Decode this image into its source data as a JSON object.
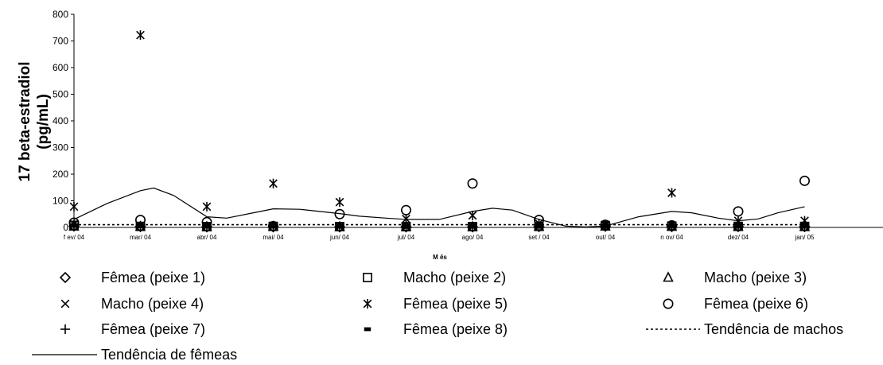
{
  "chart_data": {
    "type": "scatter",
    "title": "",
    "ylabel_line1": "17 beta-estradiol",
    "ylabel_line2": "(pg/mL)",
    "xlabel": "M ês",
    "ylim": [
      0,
      800
    ],
    "yticks": [
      "0",
      "100",
      "200",
      "300",
      "400",
      "500",
      "600",
      "700",
      "800"
    ],
    "categories": [
      "f ev/ 04",
      "mar/ 04",
      "abr/ 04",
      "mai/ 04",
      "jun/ 04",
      "jul/ 04",
      "ago/ 04",
      "set / 04",
      "out/ 04",
      "n ov/ 04",
      "dez/ 04",
      "jan/ 05"
    ],
    "grid": false,
    "legend_position": "bottom",
    "series": [
      {
        "name": "Fêmea (peixe 1)",
        "marker": "diamond",
        "values": [
          5,
          3,
          2,
          2,
          2,
          2,
          2,
          3,
          4,
          3,
          3,
          3
        ]
      },
      {
        "name": "Macho (peixe 2)",
        "marker": "square",
        "values": [
          8,
          4,
          3,
          4,
          3,
          3,
          3,
          4,
          6,
          5,
          4,
          4
        ]
      },
      {
        "name": "Macho (peixe 3)",
        "marker": "triangle",
        "values": [
          4,
          3,
          2,
          3,
          2,
          2,
          2,
          3,
          4,
          3,
          3,
          2
        ]
      },
      {
        "name": "Macho (peixe 4)",
        "marker": "x",
        "values": [
          12,
          6,
          4,
          5,
          3,
          3,
          3,
          4,
          8,
          6,
          5,
          5
        ]
      },
      {
        "name": "Fêmea (peixe 5)",
        "marker": "asterisk",
        "values": [
          78,
          722,
          78,
          165,
          95,
          32,
          45,
          15,
          10,
          130,
          25,
          25
        ]
      },
      {
        "name": "Fêmea (peixe 6)",
        "marker": "circle",
        "values": [
          18,
          28,
          20,
          5,
          50,
          65,
          165,
          28,
          10,
          8,
          60,
          175
        ]
      },
      {
        "name": "Fêmea (peixe 7)",
        "marker": "plus",
        "values": [
          10,
          5,
          4,
          4,
          3,
          3,
          3,
          4,
          5,
          4,
          4,
          3
        ]
      },
      {
        "name": "Fêmea (peixe 8)",
        "marker": "dash",
        "values": [
          6,
          4,
          3,
          3,
          3,
          2,
          3,
          3,
          4,
          3,
          3,
          3
        ]
      }
    ],
    "trend_series": [
      {
        "name": "Tendência de machos",
        "style": "dotted",
        "x": [
          0,
          11
        ],
        "values": [
          10,
          10
        ]
      },
      {
        "name": "Tendência de fêmeas",
        "style": "solid",
        "x": [
          0,
          0.5,
          1,
          1.2,
          1.5,
          2,
          2.3,
          2.7,
          3,
          3.4,
          3.7,
          4,
          4.3,
          4.7,
          5,
          5.5,
          6,
          6.3,
          6.6,
          7,
          7.4,
          7.7,
          8,
          8.5,
          9,
          9.3,
          9.7,
          10,
          10.3,
          10.6,
          11
        ],
        "values": [
          30,
          90,
          138,
          148,
          120,
          40,
          35,
          55,
          70,
          68,
          60,
          52,
          42,
          35,
          30,
          30,
          60,
          72,
          65,
          30,
          5,
          2,
          5,
          40,
          60,
          55,
          35,
          25,
          32,
          55,
          78
        ]
      }
    ]
  }
}
